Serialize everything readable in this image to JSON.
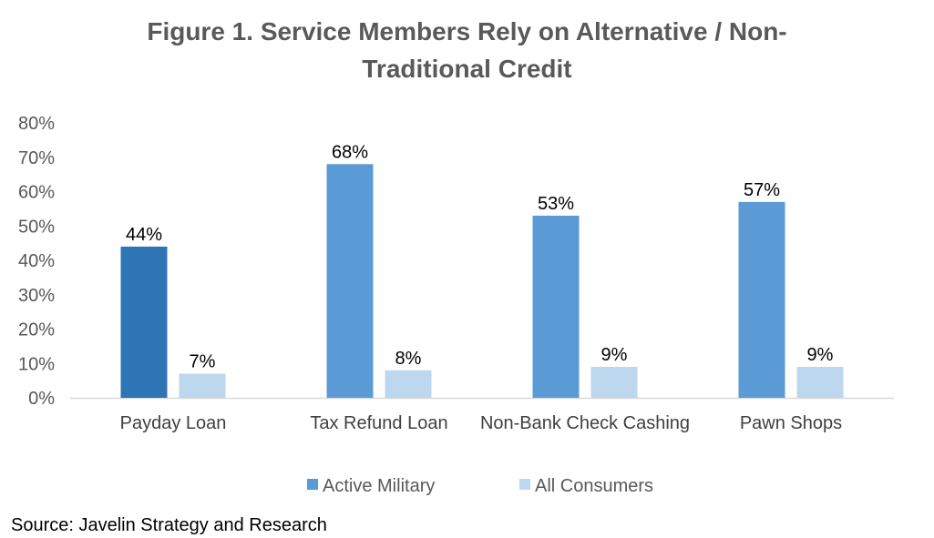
{
  "chart_data": {
    "type": "bar",
    "title": "Figure 1. Service Members Rely on Alternative / Non-Traditional Credit",
    "categories": [
      "Payday Loan",
      "Tax Refund Loan",
      "Non-Bank Check Cashing",
      "Pawn Shops"
    ],
    "series": [
      {
        "name": "Active Military",
        "values": [
          44,
          68,
          53,
          57
        ],
        "color": "#5B9BD5",
        "highlight": {
          "index": 0,
          "color": "#2E75B6"
        }
      },
      {
        "name": "All Consumers",
        "values": [
          7,
          8,
          9,
          9
        ],
        "color": "#BDD7EE"
      }
    ],
    "ylim": [
      0,
      80
    ],
    "yticks": [
      0,
      10,
      20,
      30,
      40,
      50,
      60,
      70,
      80
    ],
    "tick_format": "percent",
    "data_labels": [
      [
        "44%",
        "68%",
        "53%",
        "57%"
      ],
      [
        "7%",
        "8%",
        "9%",
        "9%"
      ]
    ],
    "grid": false,
    "legend": "bottom",
    "xlabel": "",
    "ylabel": ""
  },
  "source": "Source: Javelin Strategy and Research"
}
